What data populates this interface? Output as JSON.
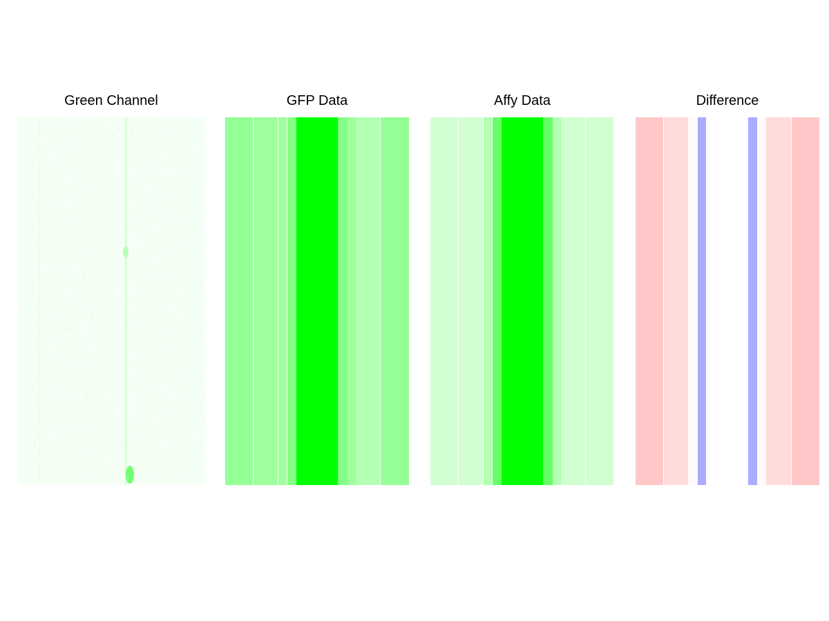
{
  "chart_data": [
    {
      "type": "image",
      "title": "Green Channel",
      "description_color": "#00ff00"
    },
    {
      "type": "heatmap",
      "title": "GFP Data",
      "columns": [
        {
          "x0": 0,
          "x1": 40,
          "intensity": 0.42
        },
        {
          "x0": 41,
          "x1": 76,
          "intensity": 0.38
        },
        {
          "x0": 77,
          "x1": 89,
          "intensity": 0.38
        },
        {
          "x0": 90,
          "x1": 103,
          "intensity": 0.48
        },
        {
          "x0": 103,
          "x1": 163,
          "intensity": 1.0
        },
        {
          "x0": 163,
          "x1": 177,
          "intensity": 0.48
        },
        {
          "x0": 177,
          "x1": 189,
          "intensity": 0.38
        },
        {
          "x0": 189,
          "x1": 224,
          "intensity": 0.3
        },
        {
          "x0": 225,
          "x1": 266,
          "intensity": 0.42
        }
      ]
    },
    {
      "type": "heatmap",
      "title": "Affy Data",
      "columns": [
        {
          "x0": 0,
          "x1": 40,
          "intensity": 0.18
        },
        {
          "x0": 41,
          "x1": 76,
          "intensity": 0.18
        },
        {
          "x0": 77,
          "x1": 89,
          "intensity": 0.3
        },
        {
          "x0": 90,
          "x1": 103,
          "intensity": 0.6
        },
        {
          "x0": 103,
          "x1": 163,
          "intensity": 1.0
        },
        {
          "x0": 163,
          "x1": 177,
          "intensity": 0.6
        },
        {
          "x0": 177,
          "x1": 189,
          "intensity": 0.3
        },
        {
          "x0": 189,
          "x1": 224,
          "intensity": 0.18
        },
        {
          "x0": 225,
          "x1": 265,
          "intensity": 0.18
        }
      ]
    },
    {
      "type": "heatmap",
      "title": "Difference",
      "columns": [
        {
          "x0": 0,
          "x1": 40,
          "value": 0.22
        },
        {
          "x0": 41,
          "x1": 76,
          "value": 0.14
        },
        {
          "x0": 77,
          "x1": 89,
          "value": 0.02
        },
        {
          "x0": 90,
          "x1": 102,
          "value": -0.33
        },
        {
          "x0": 102,
          "x1": 163,
          "value": 0
        },
        {
          "x0": 163,
          "x1": 176,
          "value": -0.33
        },
        {
          "x0": 176,
          "x1": 189,
          "value": 0.02
        },
        {
          "x0": 189,
          "x1": 225,
          "value": 0.14
        },
        {
          "x0": 226,
          "x1": 266,
          "value": 0.22
        }
      ]
    }
  ],
  "colors": {
    "green": "#00ff00",
    "red": "#ff0000",
    "blue": "#0000ff",
    "background": "#ffffff"
  }
}
